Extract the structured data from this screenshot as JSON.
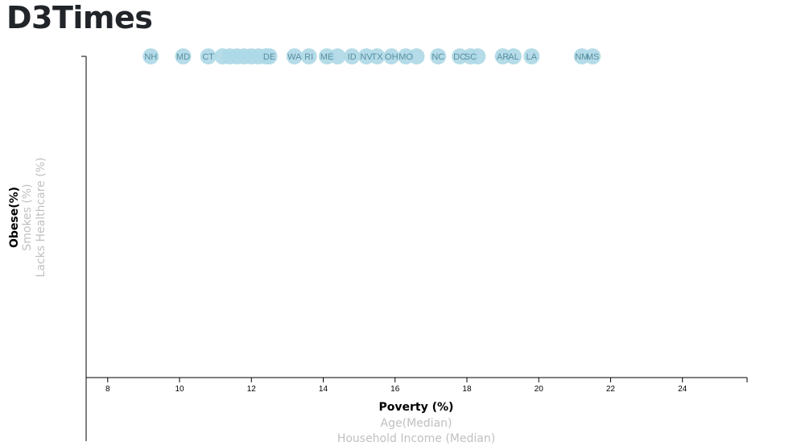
{
  "brand": "D3Times",
  "chart_data": {
    "type": "scatter",
    "x_axis": {
      "range": [
        7.4,
        25.8
      ],
      "ticks": [
        8,
        10,
        12,
        14,
        16,
        18,
        20,
        22,
        24
      ],
      "labels": [
        {
          "text": "Poverty (%)",
          "active": true
        },
        {
          "text": "Age(Median)",
          "active": false
        },
        {
          "text": "Household Income (Median)",
          "active": false
        }
      ]
    },
    "y_axis": {
      "labels": [
        {
          "text": "Obese(%)",
          "active": true
        },
        {
          "text": "Smokes (%)",
          "active": false
        },
        {
          "text": "Lacks Healthcare (%)",
          "active": false
        }
      ]
    },
    "points": [
      {
        "abbr": "NH",
        "x": 9.2
      },
      {
        "abbr": "MD",
        "x": 10.1
      },
      {
        "abbr": "CT",
        "x": 10.8
      },
      {
        "abbr": "",
        "x": 11.2
      },
      {
        "abbr": "",
        "x": 11.4
      },
      {
        "abbr": "",
        "x": 11.6
      },
      {
        "abbr": "",
        "x": 11.8
      },
      {
        "abbr": "",
        "x": 12.0
      },
      {
        "abbr": "",
        "x": 12.2
      },
      {
        "abbr": "",
        "x": 12.4
      },
      {
        "abbr": "DE",
        "x": 12.5
      },
      {
        "abbr": "WA",
        "x": 13.2
      },
      {
        "abbr": "RI",
        "x": 13.6
      },
      {
        "abbr": "ME",
        "x": 14.1
      },
      {
        "abbr": "",
        "x": 14.4
      },
      {
        "abbr": "ID",
        "x": 14.8
      },
      {
        "abbr": "NV",
        "x": 15.2
      },
      {
        "abbr": "TX",
        "x": 15.5
      },
      {
        "abbr": "OH",
        "x": 15.9
      },
      {
        "abbr": "MO",
        "x": 16.3
      },
      {
        "abbr": "",
        "x": 16.6
      },
      {
        "abbr": "NC",
        "x": 17.2
      },
      {
        "abbr": "DC",
        "x": 17.8
      },
      {
        "abbr": "SC",
        "x": 18.1
      },
      {
        "abbr": "",
        "x": 18.3
      },
      {
        "abbr": "AR",
        "x": 19.0
      },
      {
        "abbr": "AL",
        "x": 19.3
      },
      {
        "abbr": "LA",
        "x": 19.8
      },
      {
        "abbr": "NM",
        "x": 21.2
      },
      {
        "abbr": "MS",
        "x": 21.5
      }
    ]
  }
}
